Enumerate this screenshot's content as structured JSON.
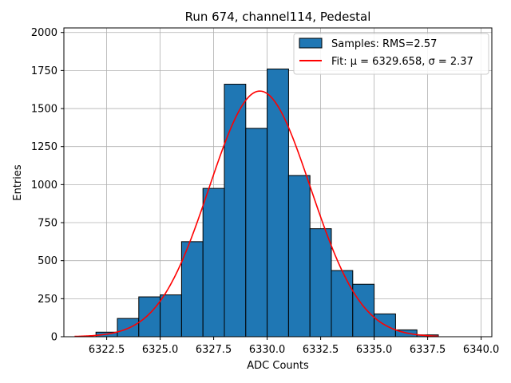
{
  "chart_data": {
    "type": "bar",
    "title": "Run 674, channel114, Pedestal",
    "xlabel": "ADC Counts",
    "ylabel": "Entries",
    "xlim": [
      6320.5,
      6340.5
    ],
    "ylim": [
      0,
      2030
    ],
    "xticks": [
      6322.5,
      6325.0,
      6327.5,
      6330.0,
      6332.5,
      6335.0,
      6337.5,
      6340.0
    ],
    "xtick_labels": [
      "6322.5",
      "6325.0",
      "6327.5",
      "6330.0",
      "6332.5",
      "6335.0",
      "6337.5",
      "6340.0"
    ],
    "yticks": [
      0,
      250,
      500,
      750,
      1000,
      1250,
      1500,
      1750,
      2000
    ],
    "ytick_labels": [
      "0",
      "250",
      "500",
      "750",
      "1000",
      "1250",
      "1500",
      "1750",
      "2000"
    ],
    "grid": true,
    "legend_position": "top-right",
    "histogram": {
      "name": "Samples: RMS=2.57",
      "color": "#1f77b4",
      "edgecolor": "#000000",
      "bin_edges": [
        6322,
        6323,
        6324,
        6325,
        6326,
        6327,
        6328,
        6329,
        6330,
        6331,
        6332,
        6333,
        6334,
        6335,
        6336,
        6337,
        6338
      ],
      "counts": [
        30,
        120,
        262,
        275,
        625,
        975,
        1660,
        1370,
        1760,
        1060,
        710,
        435,
        345,
        150,
        45,
        12
      ]
    },
    "fit": {
      "name": "Fit: μ = 6329.658, σ = 2.37",
      "color": "#ff0000",
      "mu": 6329.658,
      "sigma": 2.37,
      "amplitude": 1615,
      "x_range": [
        6321.0,
        6338.0
      ]
    }
  }
}
